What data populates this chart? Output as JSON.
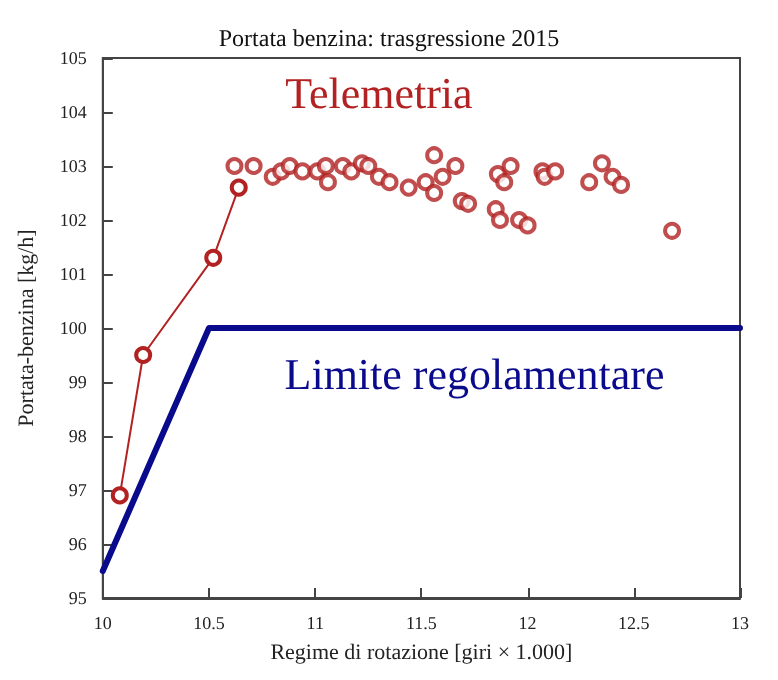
{
  "chart_data": {
    "type": "scatter",
    "title": "Portata benzina: trasgressione 2015",
    "xlabel": "Regime di rotazione [giri × 1.000]",
    "ylabel": "Portata-benzina [kg/h]",
    "series": [
      {
        "type": "line",
        "color": "#b22222",
        "marker": "circle",
        "x": [
          10.08,
          10.19,
          10.52,
          10.64
        ],
        "values": [
          96.9,
          99.5,
          101.3,
          102.6
        ]
      },
      {
        "name": "Telemetria",
        "color": "#b22222",
        "marker": "circle",
        "x": [
          10.62,
          10.71,
          10.8,
          10.84,
          10.88,
          10.94,
          11.01,
          11.05,
          11.06,
          11.13,
          11.17,
          11.22,
          11.25,
          11.3,
          11.35,
          11.44,
          11.52,
          11.56,
          11.56,
          11.6,
          11.66,
          11.69,
          11.72,
          11.85,
          11.86,
          11.87,
          11.89,
          11.92,
          11.96,
          12.0,
          12.07,
          12.08,
          12.13,
          12.29,
          12.35,
          12.4,
          12.44,
          12.68
        ],
        "values": [
          103.0,
          103.0,
          102.8,
          102.9,
          103.0,
          102.9,
          102.9,
          103.0,
          102.7,
          103.0,
          102.9,
          103.05,
          103.0,
          102.8,
          102.7,
          102.6,
          102.7,
          102.5,
          103.2,
          102.8,
          103.0,
          102.35,
          102.3,
          102.2,
          102.85,
          102.0,
          102.7,
          103.0,
          102.0,
          101.9,
          102.9,
          102.8,
          102.9,
          102.7,
          103.05,
          102.8,
          102.65,
          101.8
        ]
      },
      {
        "type": "line",
        "name": "Limite regolamentare",
        "color": "#0a0a8c",
        "marker": "none",
        "x": [
          10,
          10.5,
          13
        ],
        "values": [
          95.5,
          100,
          100
        ]
      }
    ],
    "xlim": [
      10,
      13
    ],
    "xticks": [
      10,
      10.5,
      11,
      11.5,
      12,
      12.5,
      13
    ],
    "ylim": [
      95,
      105
    ],
    "yticks": [
      95,
      96,
      97,
      98,
      99,
      100,
      101,
      102,
      103,
      104,
      105
    ],
    "grid": false,
    "legend": false
  }
}
